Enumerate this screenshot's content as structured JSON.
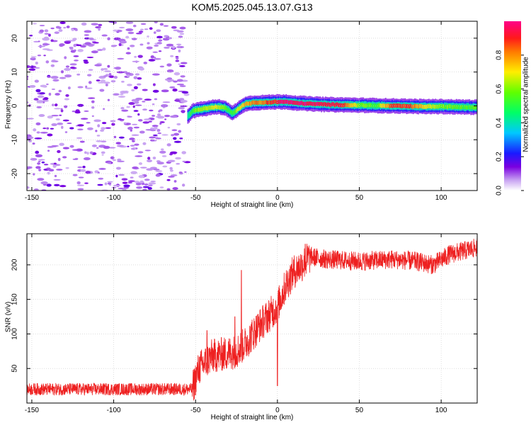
{
  "page": {
    "title": "KOM5.2025.045.13.07.G13"
  },
  "colorbar": {
    "label": "Normalized spectral amplitude",
    "ticks": [
      "0.0",
      "0.2",
      "0.4",
      "0.6",
      "0.8"
    ],
    "range": [
      0,
      1
    ],
    "colormap": "gist_rainbow_r"
  },
  "chart_data": [
    {
      "type": "heatmap",
      "xlabel": "Height of straight line (km)",
      "ylabel": "Frequency (Hz)",
      "xlim": [
        -153,
        122
      ],
      "ylim": [
        -25,
        25
      ],
      "xticks": [
        -150,
        -100,
        -50,
        0,
        50,
        100
      ],
      "yticks": [
        -20,
        -10,
        0,
        10,
        20
      ],
      "noise_region_x": [
        -153,
        -55
      ],
      "signal_ridge": {
        "x": [
          -55,
          -52,
          -48,
          -44,
          -40,
          -36,
          -32,
          -28,
          -26,
          -23,
          -20,
          -15,
          -10,
          -5,
          0,
          5,
          10,
          20,
          30,
          40,
          50,
          60,
          70,
          80,
          90,
          100,
          110,
          122
        ],
        "frequency": [
          -3,
          -1.5,
          -1,
          -0.8,
          -0.4,
          -0.3,
          -0.6,
          -2.2,
          -1.5,
          -0.4,
          0.6,
          0.9,
          1.0,
          1.1,
          1.2,
          1.2,
          0.9,
          0.6,
          0.4,
          0.3,
          0.2,
          0.1,
          0.0,
          -0.1,
          -0.2,
          -0.2,
          -0.3,
          -0.4
        ],
        "amplitude": [
          0.45,
          0.55,
          0.62,
          0.65,
          0.7,
          0.66,
          0.55,
          0.5,
          0.6,
          0.7,
          0.75,
          0.8,
          0.82,
          0.88,
          0.92,
          0.98,
          0.97,
          0.95,
          0.92,
          0.9,
          0.6,
          0.55,
          0.9,
          0.88,
          0.7,
          0.6,
          0.55,
          0.55
        ]
      },
      "grid": true
    },
    {
      "type": "line",
      "xlabel": "Height of straight line (km)",
      "ylabel": "SNR (v/v)",
      "xlim": [
        -153,
        122
      ],
      "ylim": [
        0,
        245
      ],
      "xticks": [
        -150,
        -100,
        -50,
        0,
        50,
        100
      ],
      "yticks": [
        50,
        100,
        150,
        200
      ],
      "series": [
        {
          "color": "#ee2020",
          "trend": {
            "x": [
              -153,
              -100,
              -52,
              -48,
              -40,
              -30,
              -25,
              -20,
              -10,
              0,
              5,
              10,
              15,
              20,
              30,
              50,
              70,
              85,
              95,
              105,
              122
            ],
            "y": [
              20,
              20,
              20,
              50,
              68,
              72,
              75,
              85,
              115,
              140,
              170,
              190,
              200,
              212,
              208,
              205,
              208,
              205,
              200,
              215,
              225
            ]
          },
          "spikes": [
            {
              "x": -26,
              "y": 125
            },
            {
              "x": -22,
              "y": 192
            },
            {
              "x": -43,
              "y": 105
            },
            {
              "x": 17,
              "y": 230
            },
            {
              "x": 0,
              "y": 25
            }
          ],
          "noise_amplitude": 14
        }
      ],
      "grid": true
    }
  ]
}
